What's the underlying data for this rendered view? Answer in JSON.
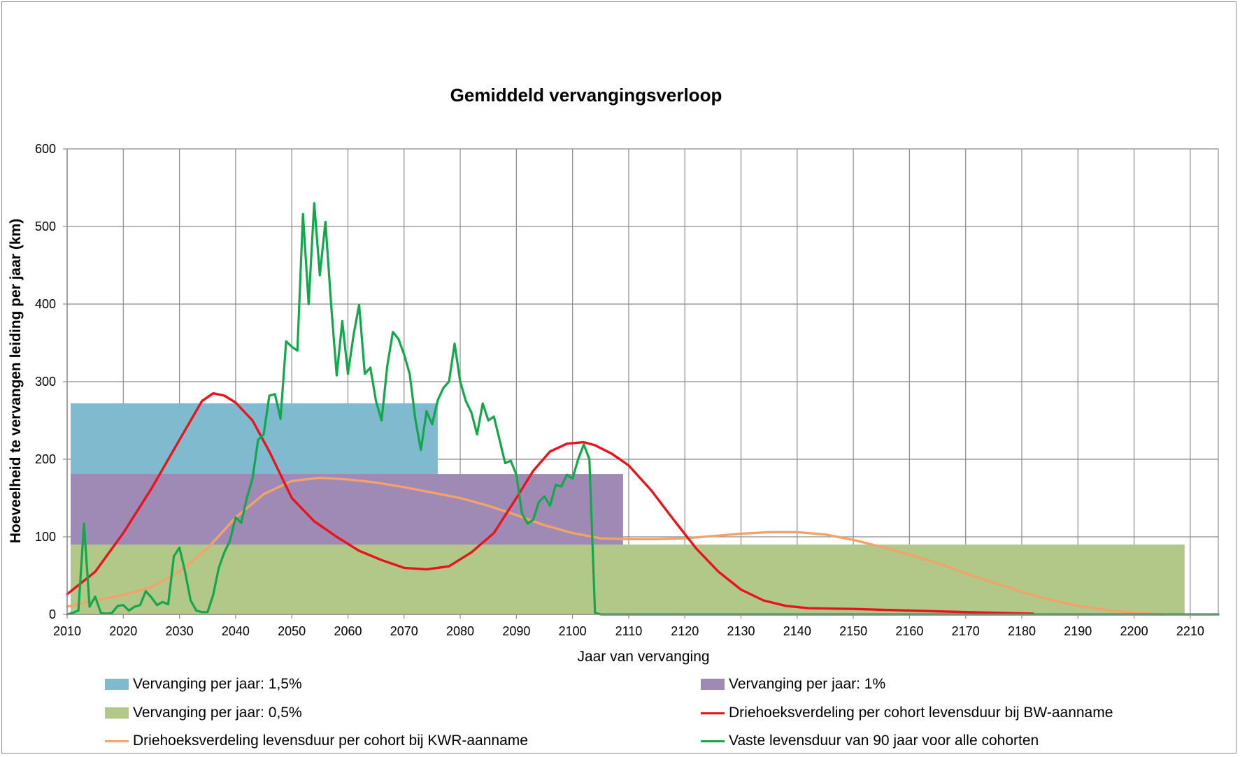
{
  "chart_data": {
    "type": "line",
    "title": "Gemiddeld vervangingsverloop",
    "xlabel": "Jaar van vervanging",
    "ylabel": "Hoeveelheid te vervangen leiding per jaar (km)",
    "xlim": [
      2010,
      2215
    ],
    "ylim": [
      0,
      600
    ],
    "x_ticks": [
      2010,
      2020,
      2030,
      2040,
      2050,
      2060,
      2070,
      2080,
      2090,
      2100,
      2110,
      2120,
      2130,
      2140,
      2150,
      2160,
      2170,
      2180,
      2190,
      2200,
      2210
    ],
    "y_ticks": [
      0,
      100,
      200,
      300,
      400,
      500,
      600
    ],
    "grid": true,
    "legend_position": "bottom",
    "areas": [
      {
        "name": "Vervanging per jaar: 1,5%",
        "color": "#7fbacf",
        "x_start": 2010,
        "x_end": 2076,
        "value": 272
      },
      {
        "name": "Vervanging per jaar: 1%",
        "color": "#9e8ab4",
        "x_start": 2010,
        "x_end": 2109,
        "value": 181
      },
      {
        "name": "Vervanging per jaar: 0,5%",
        "color": "#b1c889",
        "x_start": 2010,
        "x_end": 2209,
        "value": 90
      }
    ],
    "series": [
      {
        "name": "Driehoeksverdeling per cohort levensduur bij BW-aanname",
        "color": "#e8141b",
        "x": [
          2010,
          2015,
          2020,
          2025,
          2030,
          2034,
          2036,
          2038,
          2040,
          2043,
          2046,
          2050,
          2054,
          2058,
          2062,
          2066,
          2070,
          2074,
          2078,
          2082,
          2086,
          2090,
          2093,
          2096,
          2099,
          2102,
          2104,
          2107,
          2110,
          2114,
          2118,
          2122,
          2126,
          2130,
          2134,
          2138,
          2142,
          2150,
          2160,
          2170,
          2182
        ],
        "y": [
          26,
          55,
          105,
          162,
          225,
          275,
          285,
          282,
          273,
          250,
          210,
          150,
          120,
          100,
          82,
          70,
          60,
          58,
          62,
          80,
          105,
          150,
          185,
          210,
          220,
          222,
          218,
          207,
          192,
          160,
          122,
          85,
          55,
          32,
          18,
          11,
          8,
          7,
          5,
          3,
          1
        ]
      },
      {
        "name": "Driehoeksverdeling levensduur per cohort bij KWR-aanname",
        "color": "#f2a369",
        "x": [
          2010,
          2015,
          2020,
          2025,
          2030,
          2035,
          2040,
          2045,
          2050,
          2055,
          2060,
          2065,
          2070,
          2075,
          2080,
          2085,
          2090,
          2095,
          2100,
          2105,
          2110,
          2115,
          2120,
          2125,
          2130,
          2135,
          2140,
          2145,
          2150,
          2155,
          2160,
          2165,
          2170,
          2175,
          2180,
          2185,
          2190,
          2195,
          2200,
          2205
        ],
        "y": [
          10,
          18,
          25,
          35,
          55,
          85,
          125,
          155,
          172,
          176,
          174,
          170,
          164,
          157,
          150,
          140,
          128,
          115,
          105,
          98,
          97,
          97,
          98,
          101,
          104,
          106,
          106,
          103,
          96,
          87,
          77,
          66,
          53,
          41,
          29,
          19,
          11,
          6,
          2,
          0
        ]
      },
      {
        "name": "Vaste levensduur van 90 jaar voor alle cohorten",
        "color": "#14a64b",
        "x": [
          2010,
          2011,
          2012,
          2013,
          2014,
          2015,
          2016,
          2017,
          2018,
          2019,
          2020,
          2021,
          2022,
          2023,
          2024,
          2025,
          2026,
          2027,
          2028,
          2029,
          2030,
          2031,
          2032,
          2033,
          2034,
          2035,
          2036,
          2037,
          2038,
          2039,
          2040,
          2041,
          2042,
          2043,
          2044,
          2045,
          2046,
          2047,
          2048,
          2049,
          2050,
          2051,
          2052,
          2053,
          2054,
          2055,
          2056,
          2057,
          2058,
          2059,
          2060,
          2061,
          2062,
          2063,
          2064,
          2065,
          2066,
          2067,
          2068,
          2069,
          2070,
          2071,
          2072,
          2073,
          2074,
          2075,
          2076,
          2077,
          2078,
          2079,
          2080,
          2081,
          2082,
          2083,
          2084,
          2085,
          2086,
          2087,
          2088,
          2089,
          2090,
          2091,
          2092,
          2093,
          2094,
          2095,
          2096,
          2097,
          2098,
          2099,
          2100,
          2101,
          2102,
          2103,
          2104,
          2105,
          2110,
          2120,
          2130,
          2150,
          2180,
          2200,
          2215
        ],
        "y": [
          0,
          2,
          5,
          117,
          10,
          23,
          2,
          1,
          2,
          11,
          12,
          5,
          10,
          12,
          30,
          22,
          12,
          16,
          13,
          75,
          86,
          55,
          18,
          5,
          3,
          3,
          25,
          60,
          80,
          95,
          125,
          118,
          150,
          175,
          225,
          232,
          282,
          284,
          252,
          352,
          345,
          340,
          516,
          400,
          530,
          437,
          506,
          400,
          308,
          378,
          310,
          360,
          399,
          310,
          318,
          275,
          250,
          320,
          364,
          355,
          335,
          310,
          252,
          212,
          262,
          245,
          276,
          292,
          300,
          349,
          300,
          275,
          260,
          232,
          272,
          250,
          255,
          225,
          195,
          198,
          180,
          130,
          117,
          122,
          145,
          152,
          140,
          167,
          165,
          180,
          175,
          200,
          219,
          200,
          2,
          0,
          0,
          0,
          0,
          0,
          0,
          0,
          0
        ]
      }
    ]
  },
  "legend": [
    {
      "label": "Vervanging per jaar: 1,5%",
      "kind": "box",
      "color": "#7fbacf"
    },
    {
      "label": "Vervanging per jaar: 1%",
      "kind": "box",
      "color": "#9e8ab4"
    },
    {
      "label": "Vervanging per jaar: 0,5%",
      "kind": "box",
      "color": "#b1c889"
    },
    {
      "label": "Driehoeksverdeling per cohort levensduur bij BW-aanname",
      "kind": "line",
      "color": "#e8141b"
    },
    {
      "label": "Driehoeksverdeling levensduur per cohort bij KWR-aanname",
      "kind": "line",
      "color": "#f2a369"
    },
    {
      "label": "Vaste levensduur van 90 jaar voor alle cohorten",
      "kind": "line",
      "color": "#14a64b"
    }
  ]
}
